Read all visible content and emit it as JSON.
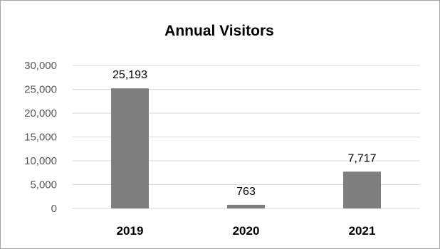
{
  "chart_data": {
    "type": "bar",
    "title": "Annual Visitors",
    "categories": [
      "2019",
      "2020",
      "2021"
    ],
    "values": [
      25193,
      763,
      7717
    ],
    "data_labels": [
      "25,193",
      "763",
      "7,717"
    ],
    "ylim": [
      0,
      30000
    ],
    "yticks": [
      0,
      5000,
      10000,
      15000,
      20000,
      25000,
      30000
    ],
    "ytick_labels": [
      "0",
      "5,000",
      "10,000",
      "15,000",
      "20,000",
      "25,000",
      "30,000"
    ],
    "grid": true,
    "legend": false,
    "colors": {
      "bar": "#7f7f7f",
      "grid": "#d9d9d9"
    }
  }
}
